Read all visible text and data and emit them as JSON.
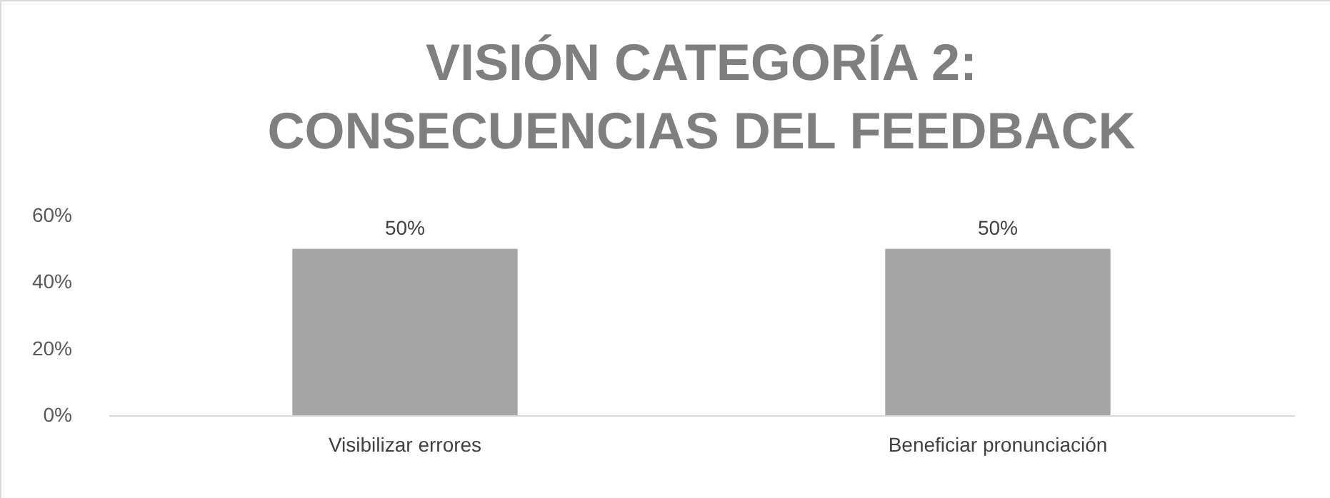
{
  "chart_data": {
    "type": "bar",
    "title": "VISIÓN CATEGORÍA 2: CONSECUENCIAS DEL FEEDBACK",
    "categories": [
      "Visibilizar errores",
      "Beneficiar pronunciación"
    ],
    "values": [
      50,
      50
    ],
    "color": "#a6a6a6",
    "value_labels": [
      "50%",
      "50%"
    ],
    "ylim": [
      0,
      60
    ],
    "yticks": [
      {
        "value": 0,
        "label": "0%"
      },
      {
        "value": 20,
        "label": "20%"
      },
      {
        "value": 40,
        "label": "40%"
      },
      {
        "value": 60,
        "label": "60%"
      }
    ],
    "grid": false
  }
}
